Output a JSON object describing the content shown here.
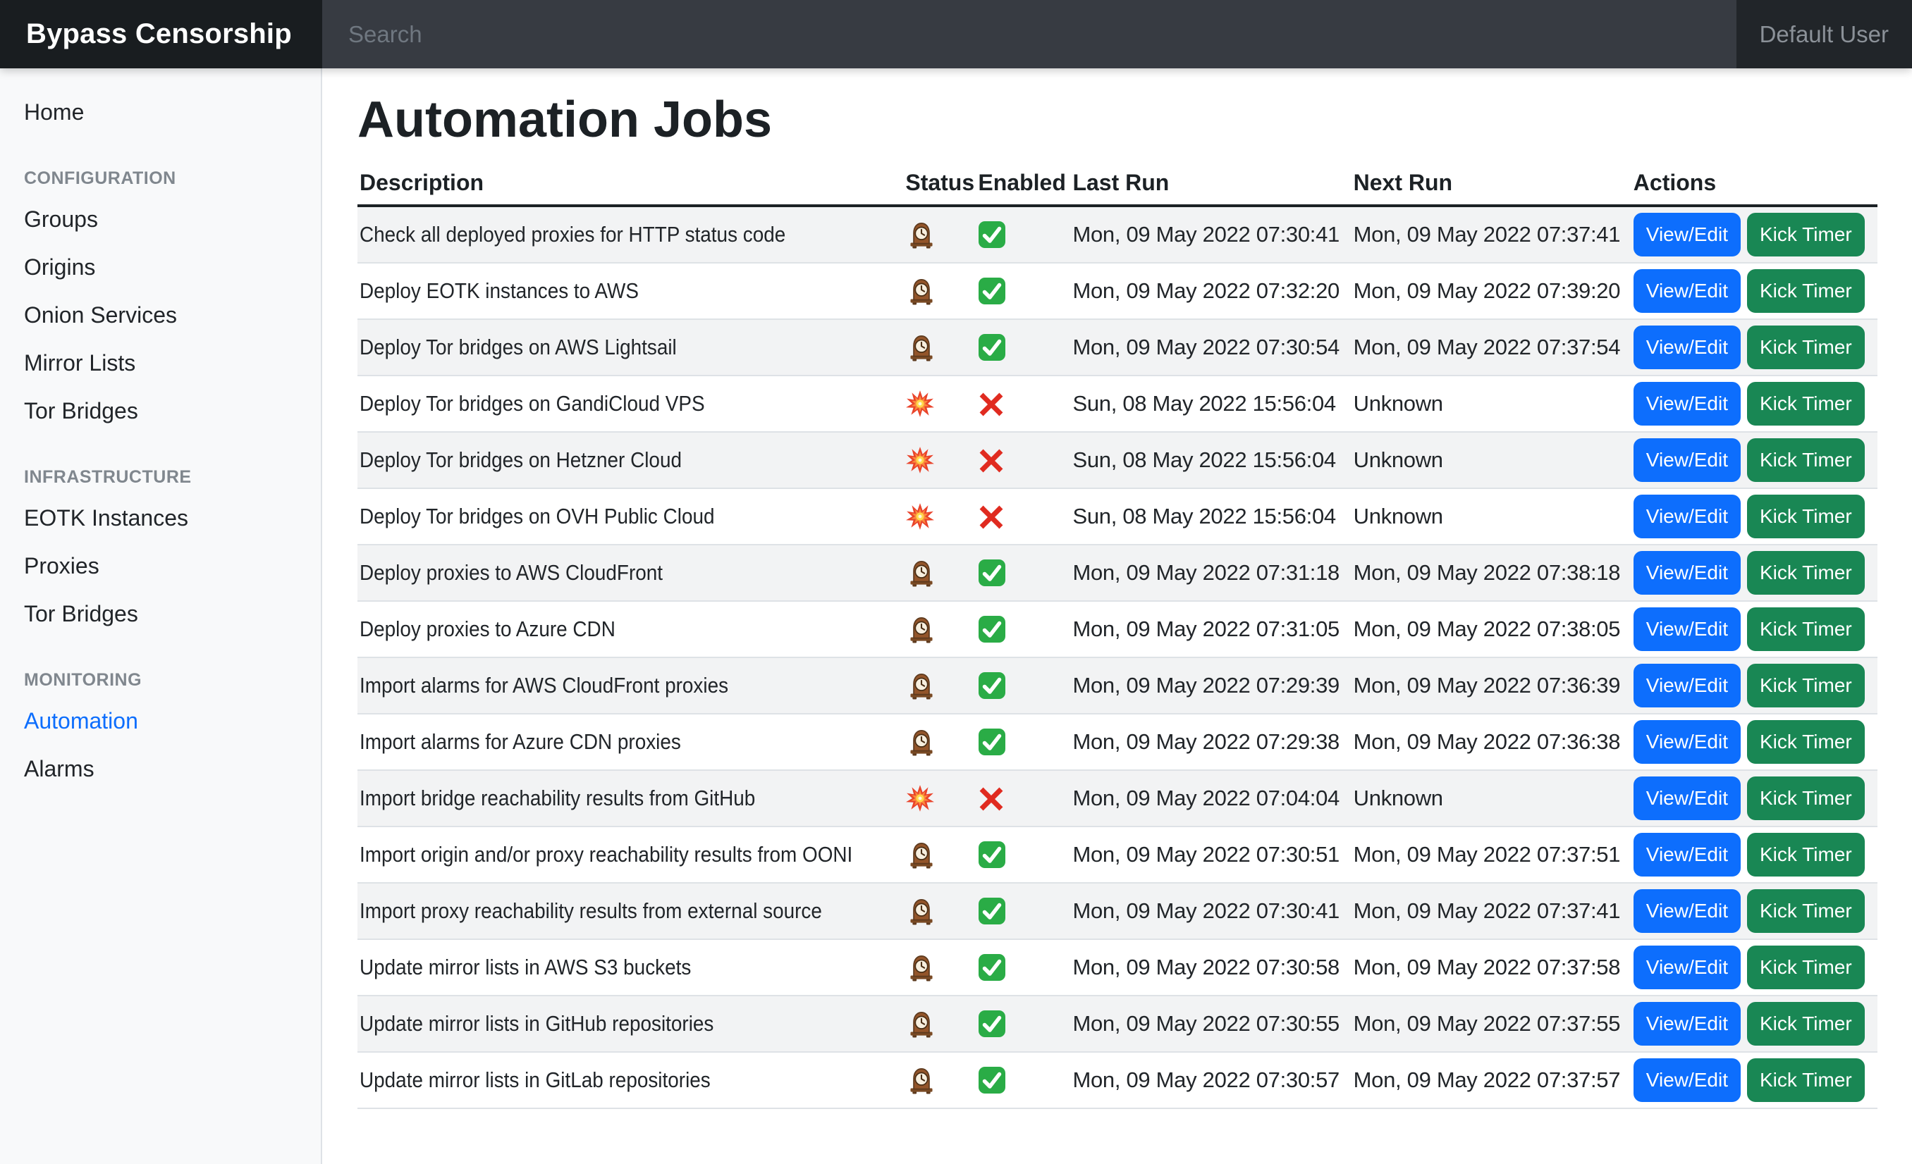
{
  "navbar": {
    "brand": "Bypass Censorship",
    "search_placeholder": "Search",
    "user": "Default User"
  },
  "sidebar": {
    "sections": [
      {
        "header": null,
        "items": [
          {
            "label": "Home",
            "active": false
          }
        ]
      },
      {
        "header": "CONFIGURATION",
        "items": [
          {
            "label": "Groups",
            "active": false
          },
          {
            "label": "Origins",
            "active": false
          },
          {
            "label": "Onion Services",
            "active": false
          },
          {
            "label": "Mirror Lists",
            "active": false
          },
          {
            "label": "Tor Bridges",
            "active": false
          }
        ]
      },
      {
        "header": "INFRASTRUCTURE",
        "items": [
          {
            "label": "EOTK Instances",
            "active": false
          },
          {
            "label": "Proxies",
            "active": false
          },
          {
            "label": "Tor Bridges",
            "active": false
          }
        ]
      },
      {
        "header": "MONITORING",
        "items": [
          {
            "label": "Automation",
            "active": true
          },
          {
            "label": "Alarms",
            "active": false
          }
        ]
      }
    ]
  },
  "main": {
    "title": "Automation Jobs",
    "table": {
      "columns": [
        "Description",
        "Status",
        "Enabled",
        "Last Run",
        "Next Run",
        "Actions"
      ],
      "actions": {
        "view_edit": "View/Edit",
        "kick_timer": "Kick Timer"
      },
      "icons": {
        "status_ok": "mantel-clock-icon",
        "status_error": "explosion-icon",
        "enabled": "green-check-icon",
        "disabled": "red-cross-icon"
      },
      "rows": [
        {
          "description": "Check all deployed proxies for HTTP status code",
          "status": "ok",
          "enabled": true,
          "last_run": "Mon, 09 May 2022 07:30:41",
          "next_run": "Mon, 09 May 2022 07:37:41"
        },
        {
          "description": "Deploy EOTK instances to AWS",
          "status": "ok",
          "enabled": true,
          "last_run": "Mon, 09 May 2022 07:32:20",
          "next_run": "Mon, 09 May 2022 07:39:20"
        },
        {
          "description": "Deploy Tor bridges on AWS Lightsail",
          "status": "ok",
          "enabled": true,
          "last_run": "Mon, 09 May 2022 07:30:54",
          "next_run": "Mon, 09 May 2022 07:37:54"
        },
        {
          "description": "Deploy Tor bridges on GandiCloud VPS",
          "status": "error",
          "enabled": false,
          "last_run": "Sun, 08 May 2022 15:56:04",
          "next_run": "Unknown"
        },
        {
          "description": "Deploy Tor bridges on Hetzner Cloud",
          "status": "error",
          "enabled": false,
          "last_run": "Sun, 08 May 2022 15:56:04",
          "next_run": "Unknown"
        },
        {
          "description": "Deploy Tor bridges on OVH Public Cloud",
          "status": "error",
          "enabled": false,
          "last_run": "Sun, 08 May 2022 15:56:04",
          "next_run": "Unknown"
        },
        {
          "description": "Deploy proxies to AWS CloudFront",
          "status": "ok",
          "enabled": true,
          "last_run": "Mon, 09 May 2022 07:31:18",
          "next_run": "Mon, 09 May 2022 07:38:18"
        },
        {
          "description": "Deploy proxies to Azure CDN",
          "status": "ok",
          "enabled": true,
          "last_run": "Mon, 09 May 2022 07:31:05",
          "next_run": "Mon, 09 May 2022 07:38:05"
        },
        {
          "description": "Import alarms for AWS CloudFront proxies",
          "status": "ok",
          "enabled": true,
          "last_run": "Mon, 09 May 2022 07:29:39",
          "next_run": "Mon, 09 May 2022 07:36:39"
        },
        {
          "description": "Import alarms for Azure CDN proxies",
          "status": "ok",
          "enabled": true,
          "last_run": "Mon, 09 May 2022 07:29:38",
          "next_run": "Mon, 09 May 2022 07:36:38"
        },
        {
          "description": "Import bridge reachability results from GitHub",
          "status": "error",
          "enabled": false,
          "last_run": "Mon, 09 May 2022 07:04:04",
          "next_run": "Unknown"
        },
        {
          "description": "Import origin and/or proxy reachability results from OONI",
          "status": "ok",
          "enabled": true,
          "last_run": "Mon, 09 May 2022 07:30:51",
          "next_run": "Mon, 09 May 2022 07:37:51"
        },
        {
          "description": "Import proxy reachability results from external source",
          "status": "ok",
          "enabled": true,
          "last_run": "Mon, 09 May 2022 07:30:41",
          "next_run": "Mon, 09 May 2022 07:37:41"
        },
        {
          "description": "Update mirror lists in AWS S3 buckets",
          "status": "ok",
          "enabled": true,
          "last_run": "Mon, 09 May 2022 07:30:58",
          "next_run": "Mon, 09 May 2022 07:37:58"
        },
        {
          "description": "Update mirror lists in GitHub repositories",
          "status": "ok",
          "enabled": true,
          "last_run": "Mon, 09 May 2022 07:30:55",
          "next_run": "Mon, 09 May 2022 07:37:55"
        },
        {
          "description": "Update mirror lists in GitLab repositories",
          "status": "ok",
          "enabled": true,
          "last_run": "Mon, 09 May 2022 07:30:57",
          "next_run": "Mon, 09 May 2022 07:37:57"
        }
      ]
    }
  },
  "colors": {
    "primary": "#0d6efd",
    "success": "#198754",
    "navbar_dark": "#212529",
    "navbar_brand_bg": "#191d20",
    "navbar_search_bg": "#373b42",
    "sidebar_bg": "#f8f9fa",
    "stripe": "#f2f3f4",
    "header_border": "#1c2125",
    "row_border": "#dee2e6"
  }
}
